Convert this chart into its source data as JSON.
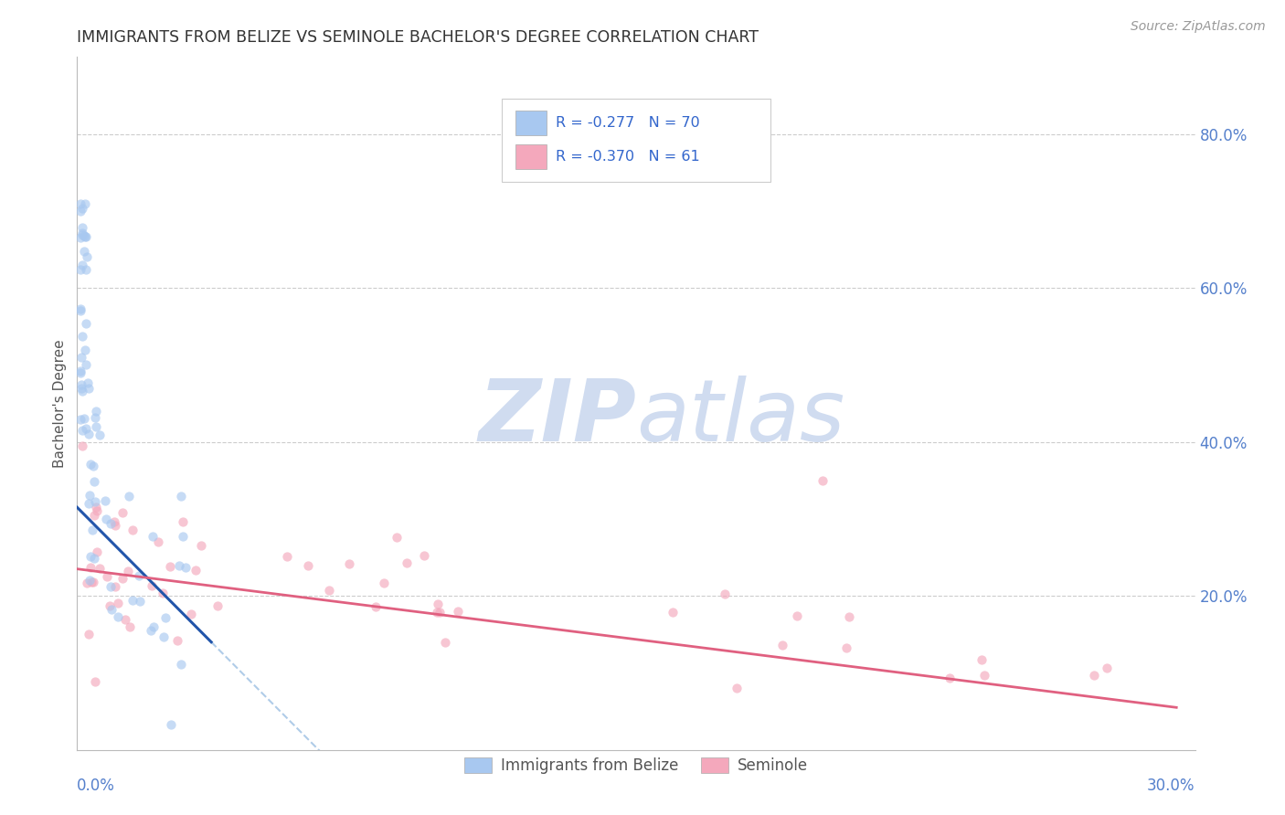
{
  "title": "IMMIGRANTS FROM BELIZE VS SEMINOLE BACHELOR'S DEGREE CORRELATION CHART",
  "source": "Source: ZipAtlas.com",
  "ylabel": "Bachelor's Degree",
  "xlim": [
    0.0,
    0.3
  ],
  "ylim": [
    0.0,
    0.9
  ],
  "blue_R": -0.277,
  "blue_N": 70,
  "pink_R": -0.37,
  "pink_N": 61,
  "blue_scatter_color": "#A8C8F0",
  "pink_scatter_color": "#F4A8BC",
  "blue_line_color": "#2255AA",
  "pink_line_color": "#E06080",
  "dashed_line_color": "#B0CCE8",
  "background_color": "#FFFFFF",
  "grid_color": "#CCCCCC",
  "watermark_color": "#D0DCF0",
  "title_color": "#333333",
  "axis_label_color": "#5580CC",
  "right_ytick_vals": [
    0.2,
    0.4,
    0.6,
    0.8
  ],
  "right_ytick_labels": [
    "20.0%",
    "40.0%",
    "60.0%",
    "80.0%"
  ],
  "legend_blue_label": "R = -0.277   N = 70",
  "legend_pink_label": "R = -0.370   N = 61",
  "legend_text_color": "#3366CC",
  "scatter_size": 55,
  "scatter_alpha": 0.65
}
